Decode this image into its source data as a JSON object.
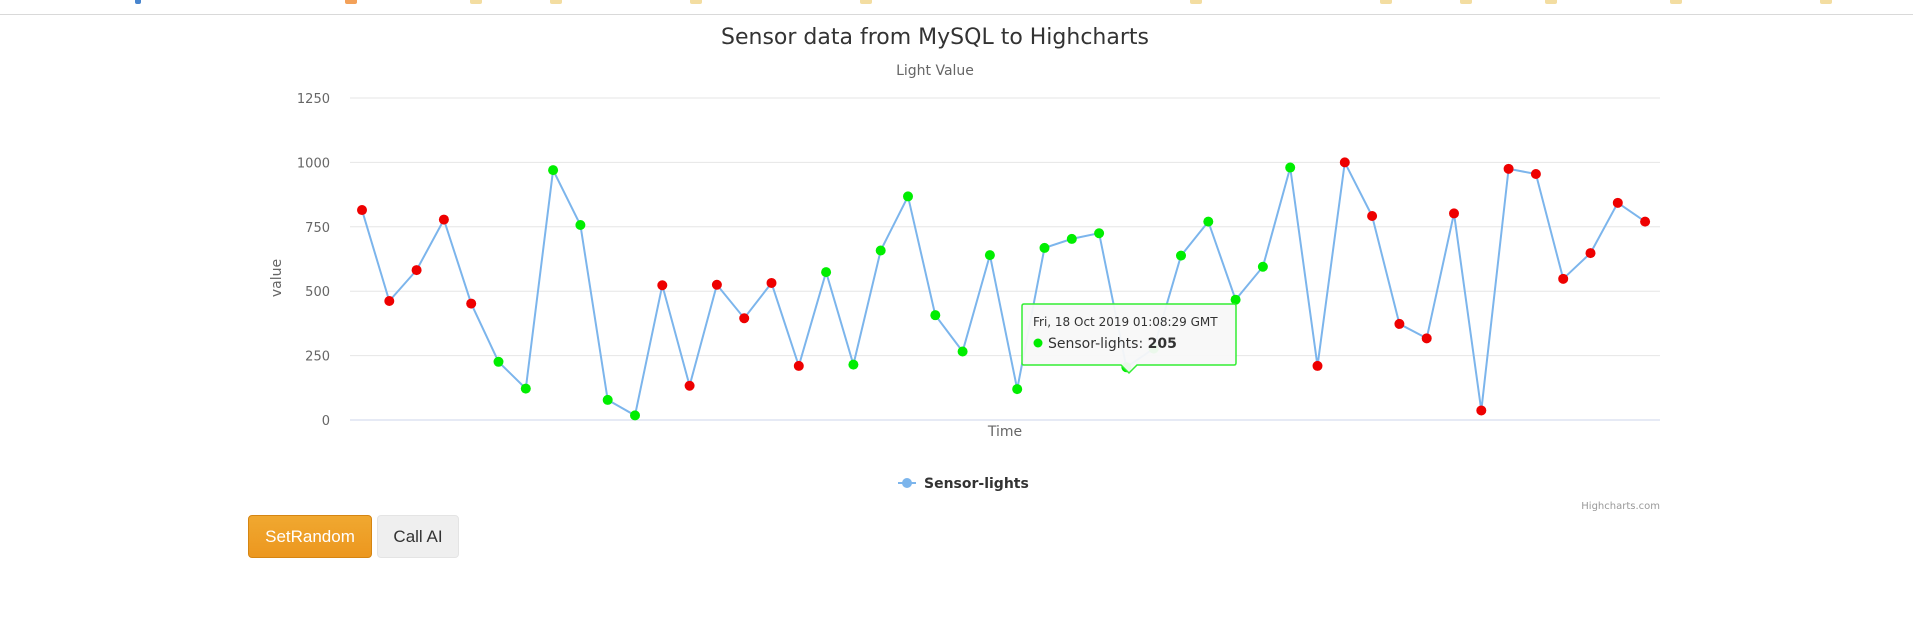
{
  "chart_data": {
    "type": "line",
    "title": "Sensor data from MySQL to Highcharts",
    "subtitle": "Light Value",
    "xlabel": "Time",
    "ylabel": "value",
    "ylim": [
      0,
      1250
    ],
    "yticks": [
      "0",
      "250",
      "500",
      "750",
      "1000",
      "1250"
    ],
    "grid": true,
    "legend_position": "bottom-center",
    "line_color": "#7cb5ec",
    "marker_colors": {
      "high": "#ee0000",
      "low": "#00ee00"
    },
    "series": [
      {
        "name": "Sensor-lights",
        "values": [
          815,
          462,
          582,
          778,
          452,
          226,
          122,
          970,
          757,
          78,
          18,
          523,
          133,
          525,
          395,
          532,
          210,
          574,
          215,
          658,
          868,
          407,
          266,
          640,
          120,
          668,
          703,
          725,
          205,
          277,
          638,
          770,
          467,
          595,
          980,
          210,
          1000,
          792,
          373,
          317,
          802,
          37,
          975,
          955,
          548,
          648,
          843,
          770
        ],
        "marker_colors": [
          "red",
          "red",
          "red",
          "red",
          "red",
          "green",
          "green",
          "green",
          "green",
          "green",
          "green",
          "red",
          "red",
          "red",
          "red",
          "red",
          "red",
          "green",
          "green",
          "green",
          "green",
          "green",
          "green",
          "green",
          "green",
          "green",
          "green",
          "green",
          "green",
          "green",
          "green",
          "green",
          "green",
          "green",
          "green",
          "red",
          "red",
          "red",
          "red",
          "red",
          "red",
          "red",
          "red",
          "red",
          "red",
          "red",
          "red",
          "red"
        ]
      }
    ],
    "tooltip": {
      "header": "Fri, 18 Oct 2019 01:08:29 GMT",
      "series_label": "Sensor-lights:",
      "value": "205",
      "point_index": 28
    },
    "credits": "Highcharts.com"
  },
  "buttons": {
    "set_random": "SetRandom",
    "call_ai": "Call AI"
  }
}
